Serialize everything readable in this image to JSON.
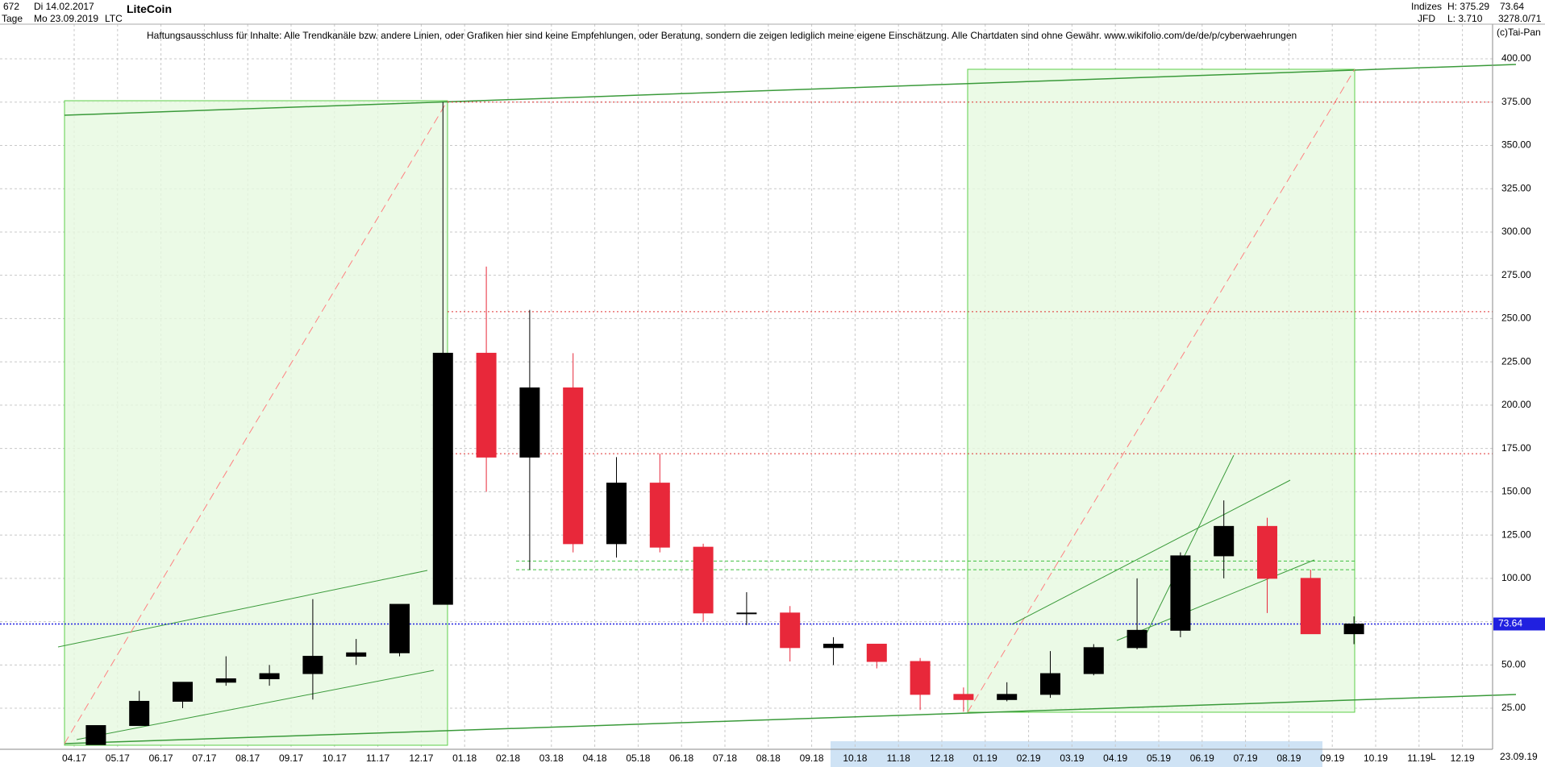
{
  "header": {
    "bars": "672",
    "start_date": "Di 14.02.2017",
    "period": "Tage",
    "end_date": "Mo 23.09.2019",
    "symbol_name": "LiteCoin",
    "symbol": "LTC",
    "disclaimer": "Haftungsausschluss für Inhalte: Alle Trendkanäle bzw. andere Linien, oder Grafiken hier sind keine Empfehlungen, oder Beratung, sondern die zeigen lediglich meine eigene Einschätzung. Alle Chartdaten sind ohne Gewähr.  www.wikifolio.com/de/de/p/cyberwaehrungen",
    "index_group": "Indizes",
    "exchange": "JFD",
    "high": "H: 375.29",
    "low": "L: 3.710",
    "counter": "3278.0/71",
    "copyright": "(c)Tai-Pan",
    "footer_date": "23.09.19",
    "footer_mode": "L"
  },
  "chart_data": {
    "type": "candlestick",
    "categories": [
      "04.17",
      "05.17",
      "06.17",
      "07.17",
      "08.17",
      "09.17",
      "10.17",
      "11.17",
      "12.17",
      "01.18",
      "02.18",
      "03.18",
      "04.18",
      "05.18",
      "06.18",
      "07.18",
      "08.18",
      "09.18",
      "10.18",
      "11.18",
      "12.18",
      "01.19",
      "02.19",
      "03.19",
      "04.19",
      "05.19",
      "06.19",
      "07.19",
      "08.19",
      "09.19",
      "10.19",
      "11.19",
      "12.19"
    ],
    "open": [
      4,
      15,
      29,
      40,
      42,
      45,
      55,
      57,
      85,
      230,
      170,
      210,
      120,
      155,
      118,
      80,
      80,
      60,
      62,
      52,
      33,
      30,
      33,
      45,
      60,
      70,
      113,
      130,
      100,
      68,
      null,
      null,
      null
    ],
    "high": [
      15,
      35,
      40,
      55,
      50,
      88,
      65,
      85,
      375,
      280,
      255,
      230,
      170,
      172,
      120,
      92,
      84,
      66,
      62,
      54,
      37,
      40,
      58,
      62,
      100,
      115,
      145,
      135,
      105,
      78,
      null,
      null,
      null
    ],
    "low": [
      4,
      15,
      25,
      38,
      38,
      30,
      50,
      55,
      85,
      150,
      105,
      115,
      112,
      115,
      75,
      73,
      52,
      50,
      48,
      24,
      23,
      29,
      31,
      44,
      59,
      66,
      100,
      80,
      68,
      62,
      null,
      null,
      null
    ],
    "close": [
      15,
      29,
      40,
      42,
      45,
      55,
      57,
      85,
      230,
      170,
      210,
      120,
      155,
      118,
      80,
      80,
      60,
      62,
      52,
      33,
      30,
      33,
      45,
      60,
      70,
      113,
      130,
      100,
      68,
      73.64,
      null,
      null,
      null
    ],
    "up_color": "#000000",
    "down_color": "#e8283a",
    "current_price": 73.64,
    "resistance_levels": [
      375,
      254,
      172
    ],
    "support_levels": [
      110,
      105
    ],
    "ylim": [
      1.3,
      420
    ],
    "yticks": [
      {
        "value": 25,
        "label": "25.00"
      },
      {
        "value": 50,
        "label": "50.00"
      },
      {
        "value": 75,
        "label": "75.00"
      },
      {
        "value": 100,
        "label": "100.00"
      },
      {
        "value": 125,
        "label": "125.00"
      },
      {
        "value": 150,
        "label": "150.00"
      },
      {
        "value": 175,
        "label": "175.00"
      },
      {
        "value": 200,
        "label": "200.00"
      },
      {
        "value": 225,
        "label": "225.00"
      },
      {
        "value": 250,
        "label": "250.00"
      },
      {
        "value": 275,
        "label": "275.00"
      },
      {
        "value": 300,
        "label": "300.00"
      },
      {
        "value": 325,
        "label": "325.00"
      },
      {
        "value": 350,
        "label": "350.00"
      },
      {
        "value": 375,
        "label": "375.00"
      },
      {
        "value": 400,
        "label": "400.00"
      }
    ],
    "grid": true
  }
}
